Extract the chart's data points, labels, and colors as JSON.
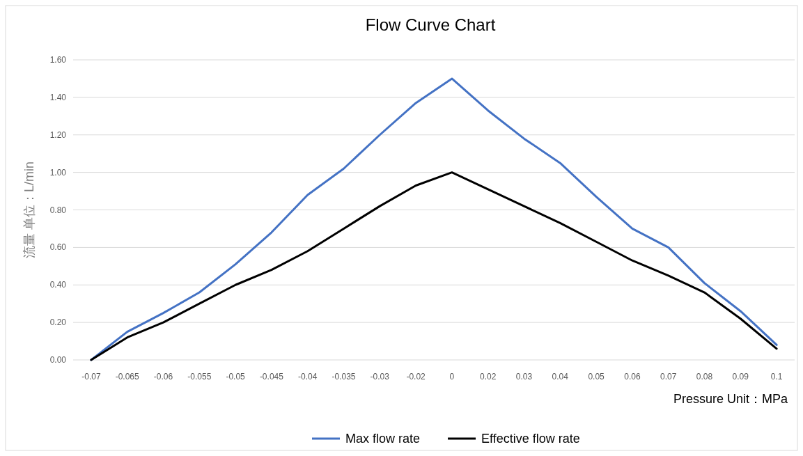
{
  "chart_data": {
    "type": "line",
    "title": "Flow Curve Chart",
    "xlabel": "Pressure   Unit：MPa",
    "ylabel": "流量   单位：L/min",
    "categories": [
      "-0.07",
      "-0.065",
      "-0.06",
      "-0.055",
      "-0.05",
      "-0.045",
      "-0.04",
      "-0.035",
      "-0.03",
      "-0.02",
      "0",
      "0.02",
      "0.03",
      "0.04",
      "0.05",
      "0.06",
      "0.07",
      "0.08",
      "0.09",
      "0.1"
    ],
    "series": [
      {
        "name": "Max flow rate",
        "color": "#4472c4",
        "values": [
          0,
          0.15,
          0.25,
          0.36,
          0.51,
          0.68,
          0.88,
          1.02,
          1.2,
          1.37,
          1.5,
          1.33,
          1.18,
          1.05,
          0.87,
          0.7,
          0.6,
          0.41,
          0.26,
          0.08
        ]
      },
      {
        "name": "Effective flow rate",
        "color": "#000000",
        "values": [
          0,
          0.12,
          0.2,
          0.3,
          0.4,
          0.48,
          0.58,
          0.7,
          0.82,
          0.93,
          1.0,
          0.91,
          0.82,
          0.73,
          0.63,
          0.53,
          0.45,
          0.36,
          0.22,
          0.06
        ]
      }
    ],
    "ylim": [
      0,
      1.6
    ],
    "yticks": [
      {
        "value": 0,
        "label": "0.00"
      },
      {
        "value": 0.2,
        "label": "0.20"
      },
      {
        "value": 0.4,
        "label": "0.40"
      },
      {
        "value": 0.6,
        "label": "0.60"
      },
      {
        "value": 0.8,
        "label": "0.80"
      },
      {
        "value": 1.0,
        "label": "1.00"
      },
      {
        "value": 1.2,
        "label": "1.20"
      },
      {
        "value": 1.4,
        "label": "1.40"
      },
      {
        "value": 1.6,
        "label": "1.60"
      }
    ],
    "grid": "y",
    "legend": "bottom",
    "marker": "none",
    "line_style": "solid"
  }
}
